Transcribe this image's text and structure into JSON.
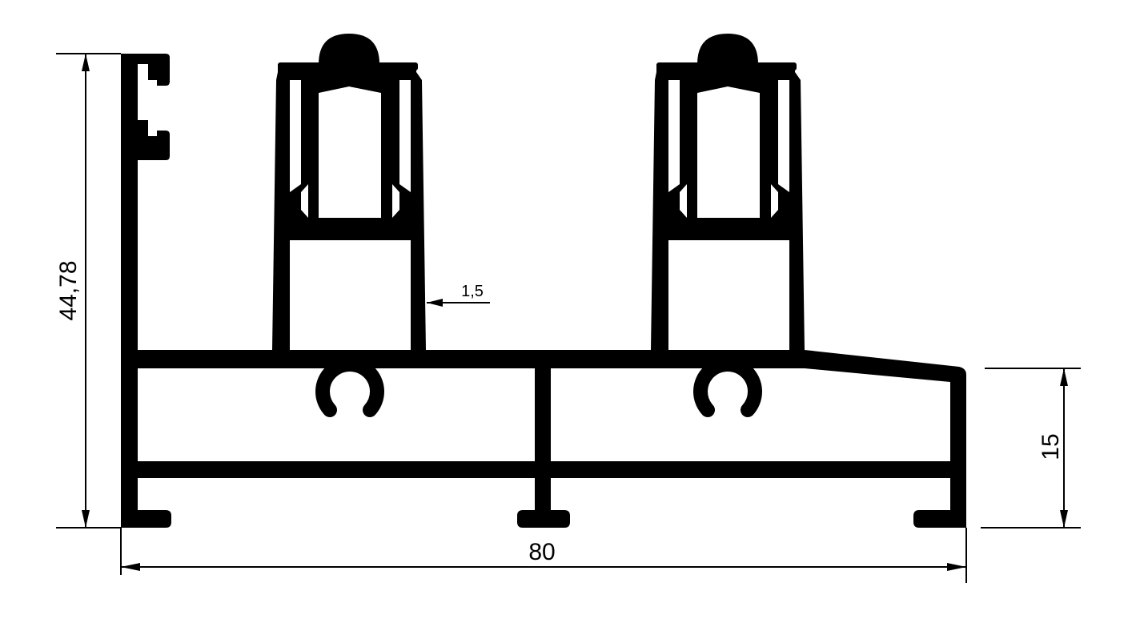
{
  "drawing": {
    "dimensions": {
      "height_total": "44,78",
      "width_total": "80",
      "height_lower": "15",
      "wall_thickness": "1,5"
    },
    "colors": {
      "profile": "#000000",
      "background": "#ffffff",
      "lines": "#000000"
    }
  }
}
